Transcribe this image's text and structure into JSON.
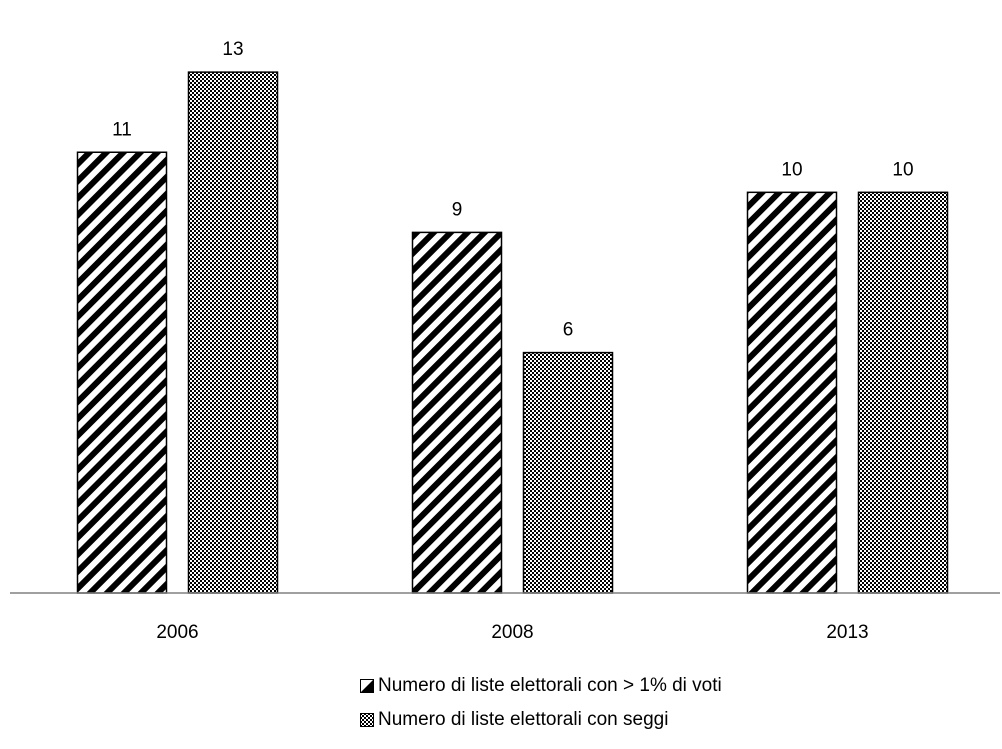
{
  "chart_data": {
    "type": "bar",
    "categories": [
      "2006",
      "2008",
      "2013"
    ],
    "series": [
      {
        "name": "Numero di liste elettorali con > 1% di voti",
        "values": [
          11,
          9,
          10
        ],
        "pattern": "diagonal-stripes"
      },
      {
        "name": "Numero di liste elettorali con seggi",
        "values": [
          13,
          6,
          10
        ],
        "pattern": "checkerboard"
      }
    ],
    "title": "",
    "xlabel": "",
    "ylabel": "",
    "ylim": [
      0,
      14.8
    ],
    "grid": false,
    "legend_position": "bottom-center",
    "colors": {
      "bar_stroke": "#000000",
      "axis": "#808080",
      "text": "#000000"
    }
  }
}
